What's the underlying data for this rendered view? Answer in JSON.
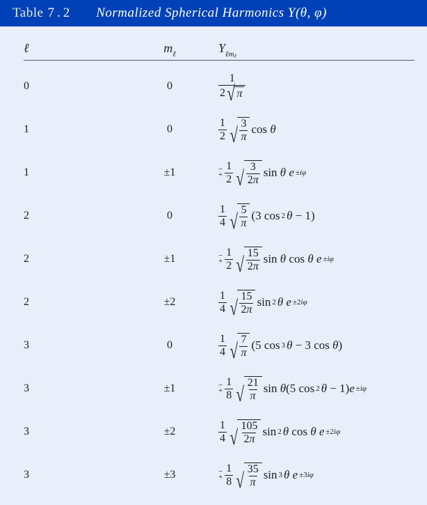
{
  "colors": {
    "page_bg": "#e8effb",
    "header_bg": "#0041b8",
    "header_text": "#ffffff",
    "rule": "#4f5a6b",
    "text": "#202020"
  },
  "header": {
    "table_label": "Table",
    "table_number": "7.2",
    "title": "Normalized Spherical Harmonics Y(θ, ϕ)"
  },
  "columns": {
    "l": "ℓ",
    "m": "m",
    "m_sub": "ℓ",
    "Y": "Y",
    "Y_sub": "ℓm",
    "Y_subsub": "ℓ"
  },
  "rows": [
    {
      "l": "0",
      "m": "0",
      "coef_num": "1",
      "coef_den": "2",
      "rad_num": "",
      "rad_den": "π",
      "mp": "",
      "rest": ""
    },
    {
      "l": "1",
      "m": "0",
      "coef_num": "1",
      "coef_den": "2",
      "rad_num": "3",
      "rad_den": "π",
      "mp": "",
      "rest": "cos θ"
    },
    {
      "l": "1",
      "m": "±1",
      "coef_num": "1",
      "coef_den": "2",
      "rad_num": "3",
      "rad_den": "2π",
      "mp": "mp",
      "rest": "sin θ e",
      "exp": "±iϕ"
    },
    {
      "l": "2",
      "m": "0",
      "coef_num": "1",
      "coef_den": "4",
      "rad_num": "5",
      "rad_den": "π",
      "mp": "",
      "rest": "(3 cos",
      "sup2": "2",
      "rest2": " θ − 1)"
    },
    {
      "l": "2",
      "m": "±1",
      "coef_num": "1",
      "coef_den": "2",
      "rad_num": "15",
      "rad_den": "2π",
      "mp": "mp",
      "rest": "sin θ cos θ e",
      "exp": "±iϕ"
    },
    {
      "l": "2",
      "m": "±2",
      "coef_num": "1",
      "coef_den": "4",
      "rad_num": "15",
      "rad_den": "2π",
      "mp": "",
      "rest": "sin",
      "sup2": "2",
      "rest2": " θ e",
      "exp": "±2iϕ"
    },
    {
      "l": "3",
      "m": "0",
      "coef_num": "1",
      "coef_den": "4",
      "rad_num": "7",
      "rad_den": "π",
      "mp": "",
      "rest": "(5 cos",
      "sup2": "3",
      "rest2": " θ − 3 cos θ)"
    },
    {
      "l": "3",
      "m": "±1",
      "coef_num": "1",
      "coef_den": "8",
      "rad_num": "21",
      "rad_den": "π",
      "mp": "mp",
      "rest": "sin θ(5 cos",
      "sup2": "2",
      "rest2": " θ − 1)e",
      "exp": "±iϕ"
    },
    {
      "l": "3",
      "m": "±2",
      "coef_num": "1",
      "coef_den": "4",
      "rad_num": "105",
      "rad_den": "2π",
      "mp": "",
      "rest": "sin",
      "sup2": "2",
      "rest2": " θ cos θ e",
      "exp": "±2iϕ"
    },
    {
      "l": "3",
      "m": "±3",
      "coef_num": "1",
      "coef_den": "8",
      "rad_num": "35",
      "rad_den": "π",
      "mp": "mp",
      "rest": "sin",
      "sup2": "3",
      "rest2": " θ e",
      "exp": "±3iϕ"
    }
  ]
}
